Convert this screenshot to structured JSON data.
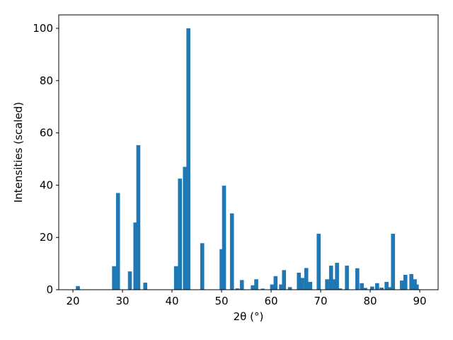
{
  "chart_data": {
    "type": "bar",
    "xlabel": "2θ (°)",
    "ylabel": "Intensities (scaled)",
    "color": "#1f77b4",
    "x": [
      21.0,
      28.3,
      29.1,
      31.5,
      32.6,
      33.2,
      34.6,
      40.8,
      41.6,
      42.6,
      43.3,
      46.1,
      50.0,
      50.5,
      52.1,
      53.2,
      54.1,
      56.3,
      57.0,
      58.3,
      60.2,
      60.9,
      62.0,
      62.6,
      63.8,
      65.6,
      66.3,
      67.1,
      67.9,
      69.6,
      71.3,
      72.1,
      72.8,
      73.3,
      73.9,
      75.3,
      77.4,
      78.3,
      79.0,
      80.4,
      81.4,
      82.3,
      83.3,
      84.1,
      84.6,
      86.4,
      87.1,
      88.3,
      89.0,
      89.4
    ],
    "values": [
      1.4,
      9,
      37,
      7,
      25.7,
      55.3,
      2.7,
      9,
      42.5,
      47,
      100,
      17.8,
      15.5,
      39.8,
      29.2,
      0.5,
      3.7,
      1.7,
      4,
      0.4,
      2,
      5.2,
      2,
      7.5,
      1,
      6.5,
      4.5,
      8.3,
      3,
      21.4,
      4,
      9.2,
      4,
      10.3,
      0.5,
      9.2,
      8.2,
      2.5,
      0.7,
      1.2,
      2.5,
      0.8,
      3,
      1,
      21.4,
      3.5,
      5.7,
      6,
      4,
      2
    ],
    "xlim": [
      17.14,
      93.71
    ],
    "ylim": [
      0,
      105.15
    ],
    "xticks": [
      20,
      30,
      40,
      50,
      60,
      70,
      80,
      90
    ],
    "yticks": [
      0,
      20,
      40,
      60,
      80,
      100
    ]
  }
}
